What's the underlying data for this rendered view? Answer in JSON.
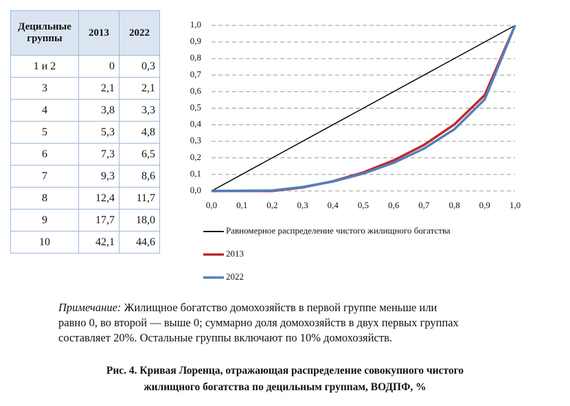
{
  "table": {
    "header": [
      "Децильные группы",
      "2013",
      "2022"
    ],
    "rows": [
      [
        "1 и 2",
        "0",
        "0,3"
      ],
      [
        "3",
        "2,1",
        "2,1"
      ],
      [
        "4",
        "3,8",
        "3,3"
      ],
      [
        "5",
        "5,3",
        "4,8"
      ],
      [
        "6",
        "7,3",
        "6,5"
      ],
      [
        "7",
        "9,3",
        "8,6"
      ],
      [
        "8",
        "12,4",
        "11,7"
      ],
      [
        "9",
        "17,7",
        "18,0"
      ],
      [
        "10",
        "42,1",
        "44,6"
      ]
    ]
  },
  "chart_data": {
    "type": "line",
    "x": [
      0,
      0.2,
      0.3,
      0.4,
      0.5,
      0.6,
      0.7,
      0.8,
      0.9,
      1.0
    ],
    "series": [
      {
        "name": "Равномерное распределение чистого жилищного богатства",
        "color": "#000000",
        "x": [
          0,
          1
        ],
        "values": [
          0,
          1
        ]
      },
      {
        "name": "2013",
        "color": "#c0282d",
        "values": [
          0,
          0,
          0.021,
          0.059,
          0.112,
          0.185,
          0.278,
          0.402,
          0.579,
          1.0
        ]
      },
      {
        "name": "2022",
        "color": "#4f81bd",
        "values": [
          0,
          0.003,
          0.024,
          0.057,
          0.105,
          0.17,
          0.256,
          0.373,
          0.553,
          1.0
        ]
      }
    ],
    "xlim": [
      0,
      1
    ],
    "ylim": [
      0,
      1
    ],
    "xticks": [
      {
        "value": 0,
        "label": "0,0"
      },
      {
        "value": 0.1,
        "label": "0,1"
      },
      {
        "value": 0.2,
        "label": "0,2"
      },
      {
        "value": 0.3,
        "label": "0,3"
      },
      {
        "value": 0.4,
        "label": "0,4"
      },
      {
        "value": 0.5,
        "label": "0,5"
      },
      {
        "value": 0.6,
        "label": "0,6"
      },
      {
        "value": 0.7,
        "label": "0,7"
      },
      {
        "value": 0.8,
        "label": "0,8"
      },
      {
        "value": 0.9,
        "label": "0,9"
      },
      {
        "value": 1.0,
        "label": "1,0"
      }
    ],
    "yticks": [
      {
        "value": 0,
        "label": "0,0"
      },
      {
        "value": 0.1,
        "label": "0,1"
      },
      {
        "value": 0.2,
        "label": "0,2"
      },
      {
        "value": 0.3,
        "label": "0,3"
      },
      {
        "value": 0.4,
        "label": "0,4"
      },
      {
        "value": 0.5,
        "label": "0,5"
      },
      {
        "value": 0.6,
        "label": "0,6"
      },
      {
        "value": 0.7,
        "label": "0,7"
      },
      {
        "value": 0.8,
        "label": "0,8"
      },
      {
        "value": 0.9,
        "label": "0,9"
      },
      {
        "value": 1.0,
        "label": "1,0"
      }
    ],
    "grid": true
  },
  "note": {
    "label": "Примечание:",
    "lines": [
      " Жилищное богатство домохозяйств в первой группе меньше или",
      "равно 0, во второй — выше 0; суммарно доля домохозяйств в двух первых группах",
      "составляет 20%. Остальные группы включают по 10% домохозяйств."
    ]
  },
  "caption": [
    "Рис.  4. Кривая Лоренца, отражающая распределение совокупного чистого",
    "жилищного богатства по децильным группам, ВОДПФ, %"
  ]
}
